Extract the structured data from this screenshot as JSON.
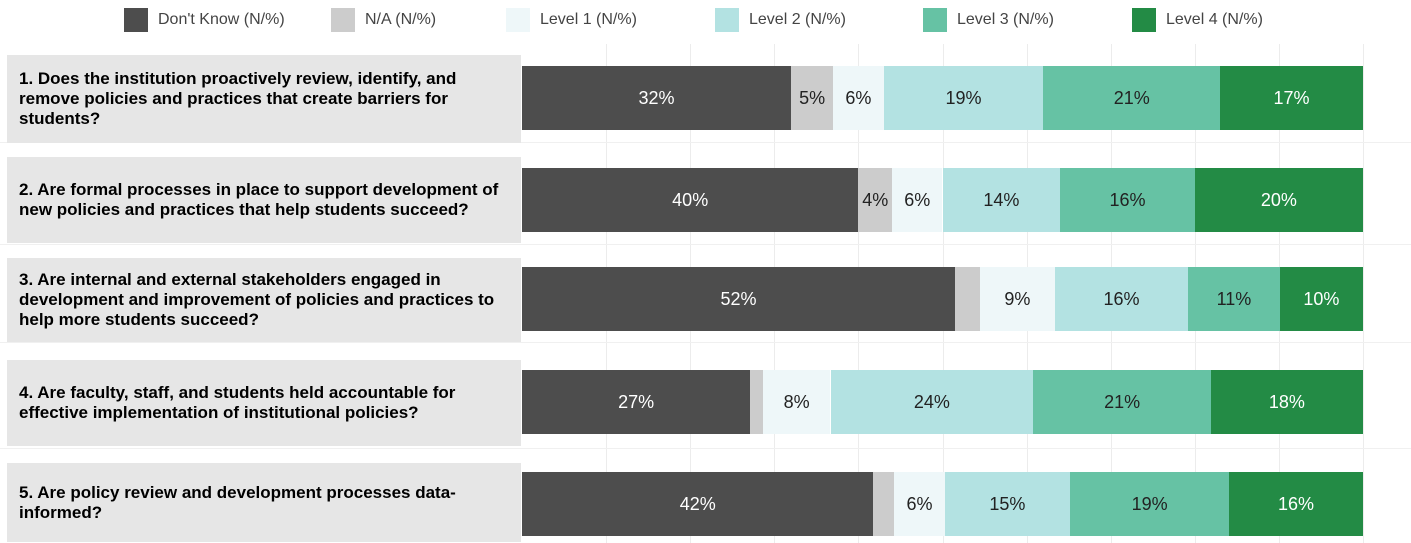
{
  "legend": [
    {
      "label": "Don't Know (N/%)",
      "color": "#4d4d4d"
    },
    {
      "label": "N/A (N/%)",
      "color": "#cccccc"
    },
    {
      "label": "Level 1 (N/%)",
      "color": "#eef7f9"
    },
    {
      "label": "Level 2 (N/%)",
      "color": "#b3e2e2"
    },
    {
      "label": "Level 3 (N/%)",
      "color": "#66c2a4"
    },
    {
      "label": "Level 4 (N/%)",
      "color": "#238b45"
    }
  ],
  "chart_data": {
    "type": "bar",
    "orientation": "horizontal",
    "stacked": true,
    "title": "",
    "xlabel": "",
    "ylabel": "",
    "xlim": [
      0,
      100
    ],
    "grid": true,
    "legend_position": "top",
    "categories": [
      "1. Does the institution proactively review, identify, and remove policies and practices that create barriers for students?",
      "2. Are formal processes in place to support development of new policies and practices that help students succeed?",
      "3. Are internal and external stakeholders engaged in development and improvement of policies and practices to help more students succeed?",
      "4. Are faculty, staff, and students held accountable for effective implementation of institutional policies?",
      "5. Are policy review and development processes data-informed?"
    ],
    "series": [
      {
        "name": "Don't Know (N/%)",
        "color": "#4d4d4d",
        "values": [
          32,
          40,
          52,
          27,
          42
        ],
        "labels": [
          "32%",
          "40%",
          "52%",
          "27%",
          "42%"
        ]
      },
      {
        "name": "N/A (N/%)",
        "color": "#cccccc",
        "values": [
          5,
          4,
          3,
          1.5,
          2.5
        ],
        "labels": [
          "5%",
          "4%",
          "",
          "",
          ""
        ]
      },
      {
        "name": "Level 1 (N/%)",
        "color": "#eef7f9",
        "values": [
          6,
          6,
          9,
          8,
          6
        ],
        "labels": [
          "6%",
          "6%",
          "9%",
          "8%",
          "6%"
        ]
      },
      {
        "name": "Level 2 (N/%)",
        "color": "#b3e2e2",
        "values": [
          19,
          14,
          16,
          24,
          15
        ],
        "labels": [
          "19%",
          "14%",
          "16%",
          "24%",
          "15%"
        ]
      },
      {
        "name": "Level 3 (N/%)",
        "color": "#66c2a4",
        "values": [
          21,
          16,
          11,
          21,
          19
        ],
        "labels": [
          "21%",
          "16%",
          "11%",
          "21%",
          "19%"
        ]
      },
      {
        "name": "Level 4 (N/%)",
        "color": "#238b45",
        "values": [
          17,
          20,
          10,
          18,
          16
        ],
        "labels": [
          "17%",
          "20%",
          "10%",
          "18%",
          "16%"
        ]
      }
    ]
  }
}
